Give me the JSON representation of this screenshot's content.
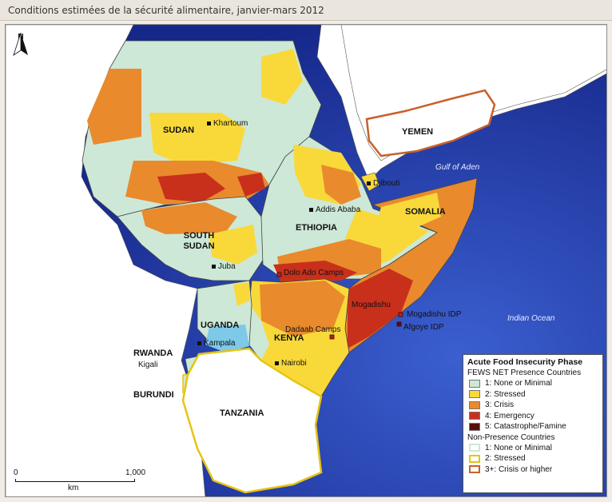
{
  "title": "Conditions estimées de la sécurité alimentaire, janvier-mars 2012",
  "colors": {
    "phase1": "#cde8d6",
    "phase2": "#f9d93a",
    "phase3": "#e98a2c",
    "phase4": "#c8301c",
    "phase5": "#5a0e08",
    "sea": "#2a46a8",
    "land_other": "#ffffff",
    "lake": "#7ec8e8",
    "border": "#444444",
    "np_outline_stressed": "#e6c412",
    "np_outline_crisis": "#c8602a"
  },
  "map": {
    "north_label": "N",
    "countries": [
      {
        "id": "sudan",
        "label": "SUDAN"
      },
      {
        "id": "south-sudan",
        "label": "SOUTH SUDAN"
      },
      {
        "id": "ethiopia",
        "label": "ETHIOPIA"
      },
      {
        "id": "somalia",
        "label": "SOMALIA"
      },
      {
        "id": "kenya",
        "label": "KENYA"
      },
      {
        "id": "uganda",
        "label": "UGANDA"
      },
      {
        "id": "rwanda",
        "label": "RWANDA"
      },
      {
        "id": "burundi",
        "label": "BURUNDI"
      },
      {
        "id": "tanzania",
        "label": "TANZANIA"
      },
      {
        "id": "yemen",
        "label": "YEMEN"
      }
    ],
    "cities": [
      "Khartoum",
      "Addis Ababa",
      "Djibouti",
      "Juba",
      "Kampala",
      "Kigali",
      "Nairobi",
      "Mogadishu"
    ],
    "camps": [
      "Dolo Ado Camps",
      "Dadaab Camps",
      "Mogadishu IDP",
      "Afgoye IDP"
    ],
    "water_labels": [
      "Gulf of Aden",
      "Indian Ocean"
    ],
    "scale": {
      "start": "0",
      "end": "1,000",
      "unit": "km"
    }
  },
  "legend": {
    "title": "Acute Food Insecurity Phase",
    "presence_header": "FEWS NET Presence Countries",
    "presence_items": [
      {
        "label": "1: None or Minimal",
        "color": "#cde8d6"
      },
      {
        "label": "2: Stressed",
        "color": "#f9d93a"
      },
      {
        "label": "3: Crisis",
        "color": "#e98a2c"
      },
      {
        "label": "4: Emergency",
        "color": "#c8301c"
      },
      {
        "label": "5: Catastrophe/Famine",
        "color": "#5a0e08"
      }
    ],
    "nonpresence_header": "Non-Presence Countries",
    "nonpresence_items": [
      {
        "label": "1: None or Minimal",
        "color": "#cde8d6"
      },
      {
        "label": "2: Stressed",
        "color": "#e6c412"
      },
      {
        "label": "3+: Crisis or higher",
        "color": "#c8602a"
      }
    ]
  }
}
